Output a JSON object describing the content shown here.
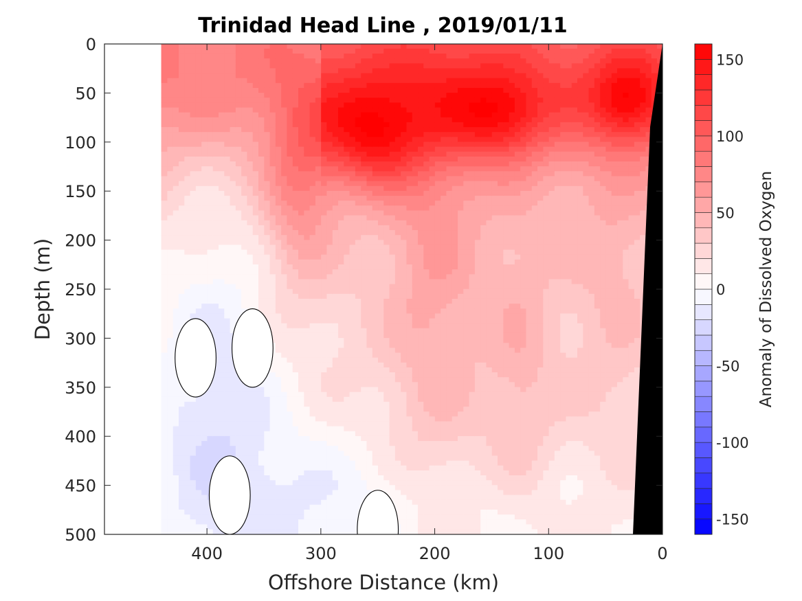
{
  "chart_data": {
    "type": "heatmap",
    "subtype": "filled-contour section",
    "title": "Trinidad Head Line , 2019/01/11",
    "xlabel": "Offshore Distance (km)",
    "ylabel": "Depth (m)",
    "colorbar_label": "Anomaly of Dissolved Oxygen",
    "x_direction": "reversed",
    "y_direction": "reversed",
    "xlim": [
      490,
      0
    ],
    "ylim": [
      0,
      500
    ],
    "x_ticks": [
      "400",
      "300",
      "200",
      "100",
      "0"
    ],
    "x_tick_values": [
      400,
      300,
      200,
      100,
      0
    ],
    "y_ticks": [
      "0",
      "50",
      "100",
      "150",
      "200",
      "250",
      "300",
      "350",
      "400",
      "450",
      "500"
    ],
    "y_tick_values": [
      0,
      50,
      100,
      150,
      200,
      250,
      300,
      350,
      400,
      450,
      500
    ],
    "colorbar": {
      "range": [
        -160,
        160
      ],
      "step": 10,
      "ticks": [
        "150",
        "100",
        "50",
        "0",
        "-50",
        "-100",
        "-150"
      ],
      "tick_values": [
        150,
        100,
        50,
        0,
        -50,
        -100,
        -150
      ],
      "colormap": "blue-white-red"
    },
    "data_coverage_x": [
      0,
      440
    ],
    "seafloor_color": "#000000",
    "grid": false,
    "highs": [
      {
        "x": 255,
        "y": 95,
        "value": 155
      },
      {
        "x": 145,
        "y": 75,
        "value": 140
      },
      {
        "x": 30,
        "y": 60,
        "value": 135
      },
      {
        "x": 320,
        "y": 150,
        "value": 120
      }
    ],
    "near_zero_regions": [
      {
        "x": 410,
        "y": 320
      },
      {
        "x": 360,
        "y": 310
      },
      {
        "x": 380,
        "y": 460
      },
      {
        "x": 250,
        "y": 495
      }
    ],
    "colors": {
      "max_red": "#ff0000",
      "zero_white": "#ffffff",
      "max_blue": "#0000ff"
    }
  }
}
